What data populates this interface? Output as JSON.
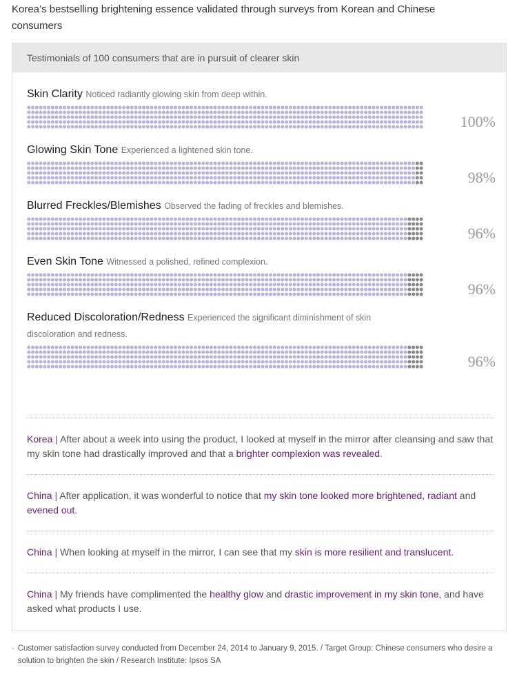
{
  "header": {
    "title": "Korea’s bestselling brightening essence validated through surveys from Korean and Chinese consumers"
  },
  "panel": {
    "heading": "Testimonials of 100 consumers that are in pursuit of clearer skin",
    "dot_color": "#b7b1dc",
    "rest_color": "#888888",
    "items": [
      {
        "label": "Skin Clarity",
        "desc": "Noticed radiantly glowing skin from deep within.",
        "value": 100,
        "value_label": "100%"
      },
      {
        "label": "Glowing Skin Tone",
        "desc": "Experienced a lightened skin tone.",
        "value": 98,
        "value_label": "98%"
      },
      {
        "label": "Blurred Freckles/Blemishes",
        "desc": "Observed the fading of freckles and blemishes.",
        "value": 96,
        "value_label": "96%"
      },
      {
        "label": "Even Skin Tone",
        "desc": "Witnessed a polished, refined complexion.",
        "value": 96,
        "value_label": "96%"
      },
      {
        "label": "Reduced Discoloration/Redness",
        "desc": "Experienced the significant diminishment of skin discoloration and redness.",
        "value": 96,
        "value_label": "96%"
      }
    ],
    "testimonials": [
      {
        "parts": [
          {
            "text": "Korea",
            "em": true
          },
          {
            "text": " | After about a week into using the product, I looked at myself in the mirror after cleansing and saw that my skin tone had drastically improved and that a ",
            "em": false
          },
          {
            "text": "brighter complexion was revealed",
            "em": true
          },
          {
            "text": ".",
            "em": false
          }
        ]
      },
      {
        "parts": [
          {
            "text": "China",
            "em": true
          },
          {
            "text": " | After application, it was wonderful to notice that ",
            "em": false
          },
          {
            "text": "my skin tone looked more brightened, radiant",
            "em": true
          },
          {
            "text": " and ",
            "em": false
          },
          {
            "text": "evened out",
            "em": true
          },
          {
            "text": ".",
            "em": false
          }
        ]
      },
      {
        "parts": [
          {
            "text": "China",
            "em": true
          },
          {
            "text": " | When looking at myself in the mirror, I can see that my ",
            "em": false
          },
          {
            "text": "skin is more resilient and translucent",
            "em": true
          },
          {
            "text": ".",
            "em": false
          }
        ]
      },
      {
        "parts": [
          {
            "text": "China",
            "em": true
          },
          {
            "text": " | My friends have complimented the ",
            "em": false
          },
          {
            "text": "healthy glow",
            "em": true
          },
          {
            "text": " and ",
            "em": false
          },
          {
            "text": "drastic improvement in my skin tone",
            "em": true
          },
          {
            "text": ", and have asked what products I use.",
            "em": false
          }
        ]
      }
    ]
  },
  "footnote": {
    "marker": "-",
    "text": "Customer satisfaction survey conducted from December 24, 2014 to January 9, 2015. / Target Group: Chinese consumers who desire a solution to brighten the skin / Research Institute: Ipsos SA"
  }
}
